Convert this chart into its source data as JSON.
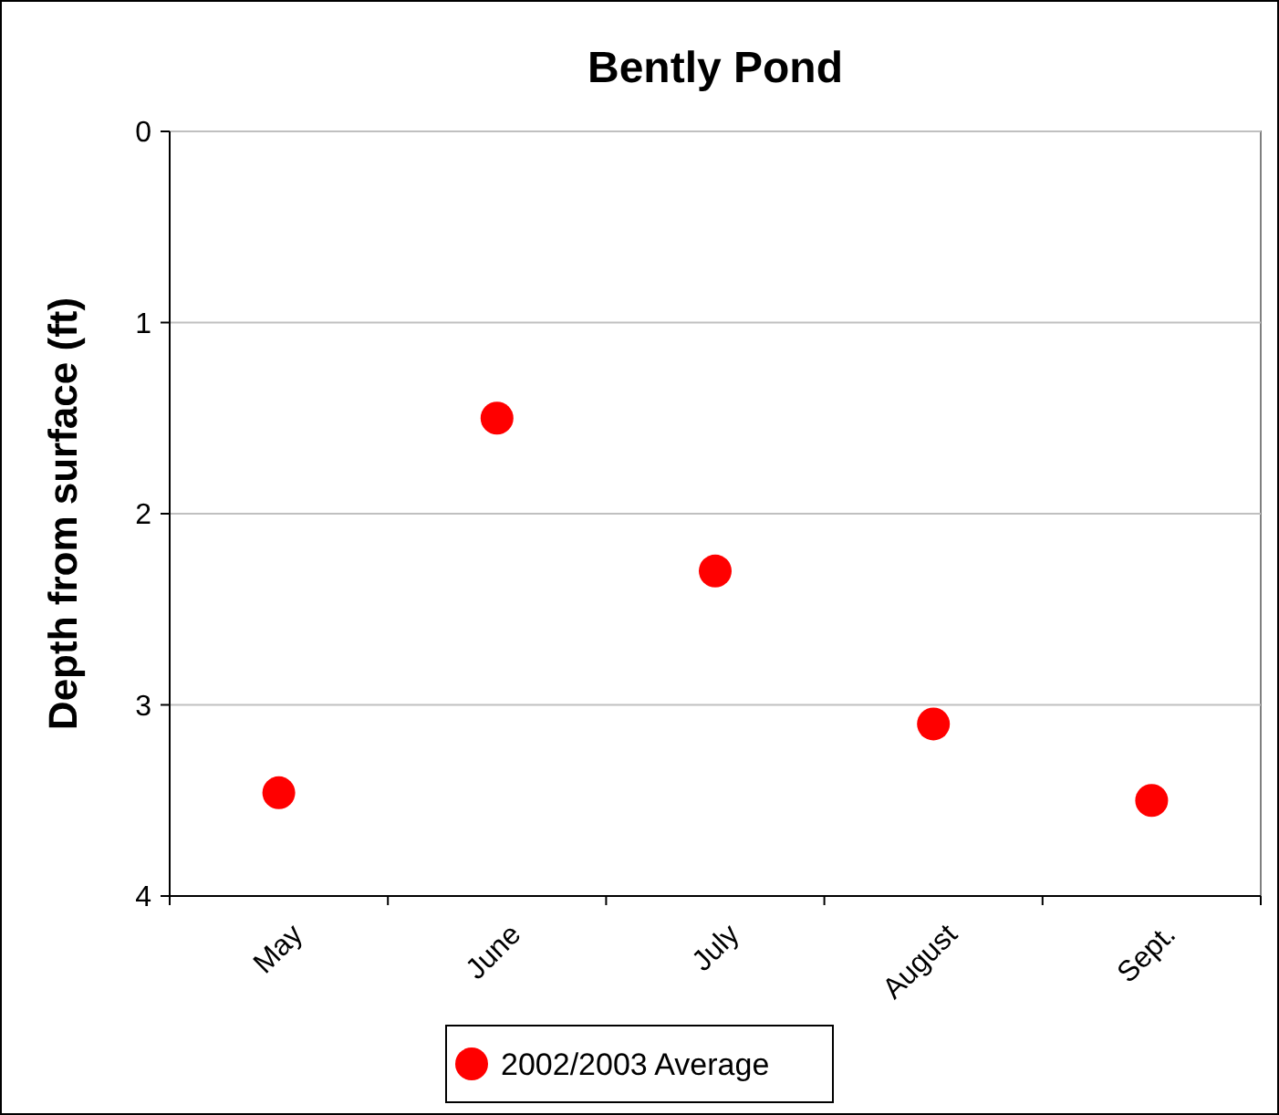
{
  "chart_data": {
    "type": "scatter",
    "title": "Bently Pond",
    "ylabel": "Depth from surface (ft)",
    "categories": [
      "May",
      "June",
      "July",
      "August",
      "Sept."
    ],
    "series": [
      {
        "name": "2002/2003 Average",
        "color": "#ff0000",
        "values": [
          3.46,
          1.5,
          2.3,
          3.1,
          3.5
        ]
      }
    ],
    "ylim": [
      4,
      0
    ],
    "yticks": [
      0,
      1,
      2,
      3,
      4
    ],
    "grid": "y",
    "legend": "bottom",
    "marker": "circle"
  }
}
